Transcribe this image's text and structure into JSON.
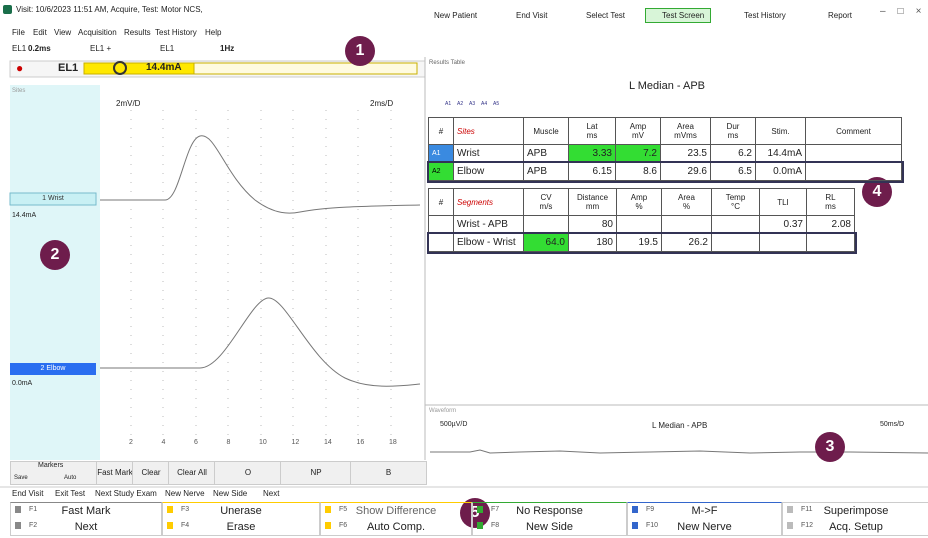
{
  "title_bar": {
    "title": "Visit: 10/6/2023 11:51 AM, Acquire, Test: Motor NCS,",
    "tools": [
      "New Patient",
      "End Visit",
      "Select Test",
      "Test Screen",
      "Test History",
      "Report"
    ]
  },
  "menu": [
    "File",
    "Edit",
    "View",
    "Acquisition",
    "Results",
    "Test History",
    "Help"
  ],
  "controls": {
    "channel": "EL1",
    "duration": "0.2ms",
    "polarity": "EL1 +",
    "electrode": "EL1",
    "rate": "1Hz",
    "stim_label": "EL1",
    "intensity": "14.4mA"
  },
  "callouts": [
    "1",
    "2",
    "3",
    "4",
    "5"
  ],
  "trace_panel": {
    "label": "Sites",
    "sensitivity": "2mV/D",
    "sweep": "2ms/D",
    "sites": [
      {
        "name": "1 Wrist",
        "stim": "14.4mA"
      },
      {
        "name": "2 Elbow",
        "stim": "0.0mA"
      }
    ],
    "x_ticks": [
      "2",
      "4",
      "6",
      "8",
      "10",
      "12",
      "14",
      "16",
      "18"
    ],
    "buttons": [
      "Fast Mark",
      "Clear",
      "Clear All",
      "O",
      "NP",
      "B"
    ],
    "markers": {
      "title": "Markers",
      "options": [
        "Save",
        "Auto"
      ]
    }
  },
  "results": {
    "panel": "Results Table",
    "title": "L Median - APB",
    "tabs": [
      "A1",
      "A2",
      "A3",
      "A4",
      "A5"
    ],
    "sites_table": {
      "headers": [
        [
          "#"
        ],
        [
          "Sites"
        ],
        [
          "Muscle"
        ],
        [
          "Lat",
          "ms"
        ],
        [
          "Amp",
          "mV"
        ],
        [
          "Area",
          "mVms"
        ],
        [
          "Dur",
          "ms"
        ],
        [
          "Stim."
        ],
        [
          "Comment"
        ]
      ],
      "rows": [
        [
          "A1",
          "Wrist",
          "APB",
          "3.33",
          "7.2",
          "23.5",
          "6.2",
          "14.4mA"
        ],
        [
          "A2",
          "Elbow",
          "APB",
          "6.15",
          "8.6",
          "29.6",
          "6.5",
          "0.0mA"
        ]
      ]
    },
    "segments_table": {
      "headers": [
        [
          "#"
        ],
        [
          "Segments"
        ],
        [
          "CV",
          "m/s"
        ],
        [
          "Distance",
          "mm"
        ],
        [
          "Amp",
          "%"
        ],
        [
          "Area",
          "%"
        ],
        [
          "Temp",
          "°C"
        ],
        [
          "TLI"
        ],
        [
          "RL",
          "ms"
        ]
      ],
      "rows": [
        {
          "segment": "Wrist - APB",
          "distance": "80",
          "tli": "0.37",
          "rl": "2.08"
        },
        {
          "segment": "Elbow - Wrist",
          "cv": "64.0",
          "distance": "180",
          "amp": "19.5",
          "area": "26.2"
        }
      ]
    }
  },
  "waveform": {
    "panel": "Waveform",
    "title": "L Median - APB",
    "sensitivity": "500µV/D",
    "sweep": "50ms/D"
  },
  "actions": [
    "End Visit",
    "Exit Test",
    "Next Study Exam",
    "New Nerve",
    "New Side",
    "Next"
  ],
  "function_keys": [
    {
      "key": "F1",
      "label": "Fast Mark"
    },
    {
      "key": "F2",
      "label": "Next"
    },
    {
      "key": "F3",
      "label": "Unerase"
    },
    {
      "key": "F4",
      "label": "Erase"
    },
    {
      "key": "F5",
      "label": "Show Difference"
    },
    {
      "key": "F6",
      "label": "Auto Comp."
    },
    {
      "key": "F7",
      "label": "No Response"
    },
    {
      "key": "F8",
      "label": "New Side"
    },
    {
      "key": "F9",
      "label": "M->F"
    },
    {
      "key": "F10",
      "label": "New Nerve"
    },
    {
      "key": "F11",
      "label": "Superimpose"
    },
    {
      "key": "F12",
      "label": "Acq. Setup"
    }
  ]
}
